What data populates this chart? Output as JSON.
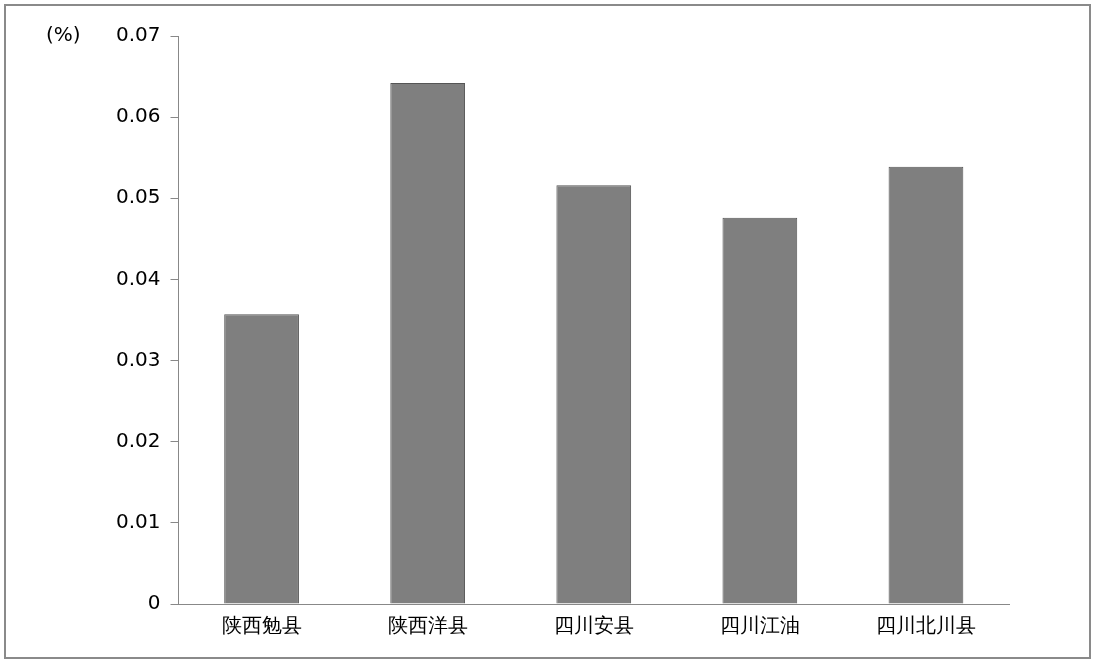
{
  "chart_data": {
    "type": "bar",
    "ylabel": "(%)",
    "categories": [
      "陕西勉县",
      "陕西洋县",
      "四川安县",
      "四川江油",
      "四川北川县"
    ],
    "values": [
      0.0357,
      0.0642,
      0.0516,
      0.0476,
      0.0539
    ],
    "color": "#7f7f7f",
    "ylim": [
      0,
      0.07
    ],
    "yticks": [
      0,
      0.01,
      0.02,
      0.03,
      0.04,
      0.05,
      0.06,
      0.07
    ],
    "grid": false,
    "legend": false
  }
}
